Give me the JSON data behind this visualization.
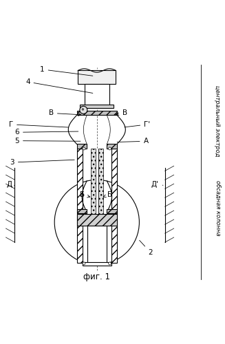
{
  "bg_color": "#ffffff",
  "line_color": "#000000",
  "title": "фиг. 1",
  "right_label_1": "центральный электрод",
  "right_label_2": "обсадная колонна"
}
